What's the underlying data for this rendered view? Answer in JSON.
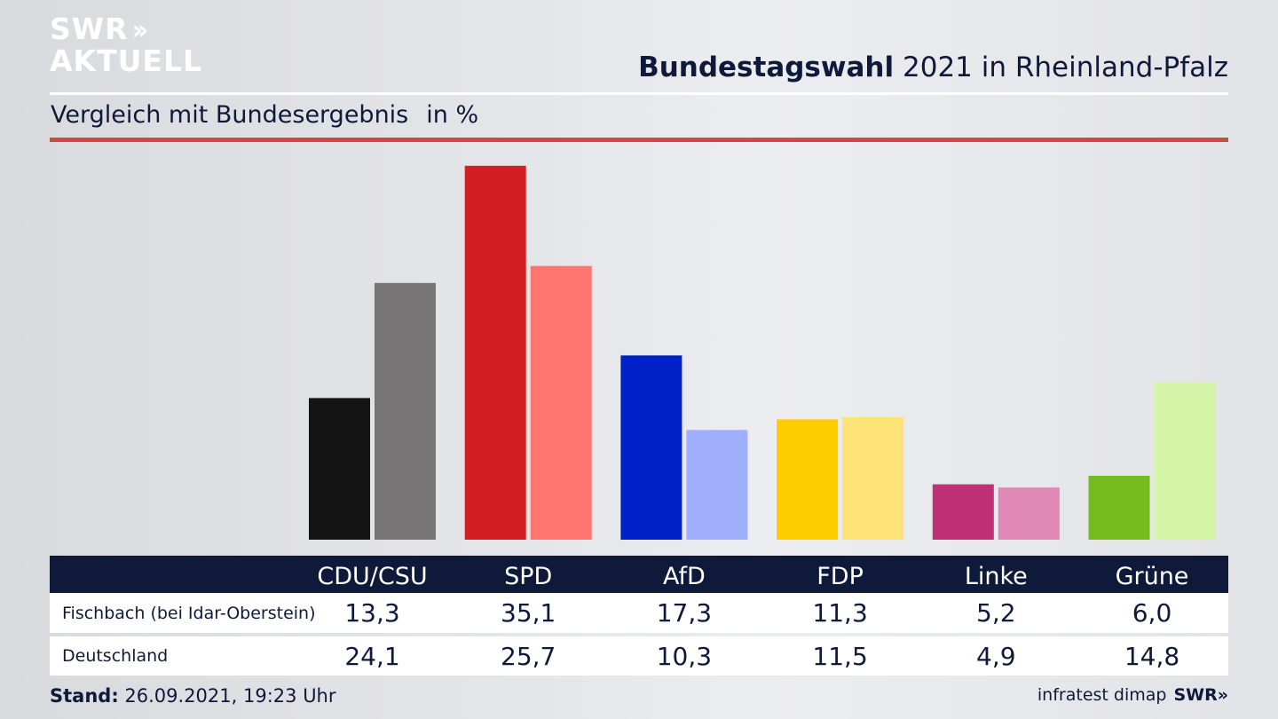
{
  "logo": {
    "line1": "SWR",
    "line2": "AKTUELL",
    "arrows": "»"
  },
  "header": {
    "title_bold": "Bundestagswahl",
    "title_rest": "2021 in Rheinland-Pfalz",
    "subtitle": "Vergleich mit Bundesergebnis",
    "unit": "in %"
  },
  "colors": {
    "navy": "#0f1a3b",
    "red_rule": "#d04a3a",
    "local": [
      "#141414",
      "#d41f22",
      "#0021c7",
      "#ffcc00",
      "#bf3177",
      "#77bc1f"
    ],
    "national": [
      "#767474",
      "#ff7570",
      "#9faefd",
      "#fde275",
      "#e088b6",
      "#d4f5a8"
    ]
  },
  "chart_data": {
    "type": "bar",
    "categories": [
      "CDU/CSU",
      "SPD",
      "AfD",
      "FDP",
      "Linke",
      "Grüne"
    ],
    "series": [
      {
        "name": "Fischbach (bei Idar-Oberstein)",
        "values": [
          13.3,
          35.1,
          17.3,
          11.3,
          5.2,
          6.0
        ]
      },
      {
        "name": "Deutschland",
        "values": [
          24.1,
          25.7,
          10.3,
          11.5,
          4.9,
          14.8
        ]
      }
    ],
    "display_values": {
      "Fischbach (bei Idar-Oberstein)": [
        "13,3",
        "35,1",
        "17,3",
        "11,3",
        "5,2",
        "6,0"
      ],
      "Deutschland": [
        "24,1",
        "25,7",
        "10,3",
        "11,5",
        "4,9",
        "14,8"
      ]
    },
    "ylim": [
      0,
      36
    ]
  },
  "table": {
    "rows": [
      {
        "label": "Fischbach (bei Idar-Oberstein)",
        "values": [
          "13,3",
          "35,1",
          "17,3",
          "11,3",
          "5,2",
          "6,0"
        ]
      },
      {
        "label": "Deutschland",
        "values": [
          "24,1",
          "25,7",
          "10,3",
          "11,5",
          "4,9",
          "14,8"
        ]
      }
    ]
  },
  "footer": {
    "stand_label": "Stand:",
    "stand_value": "26.09.2021, 19:23 Uhr",
    "source": "infratest dimap",
    "source_logo": "SWR»"
  }
}
